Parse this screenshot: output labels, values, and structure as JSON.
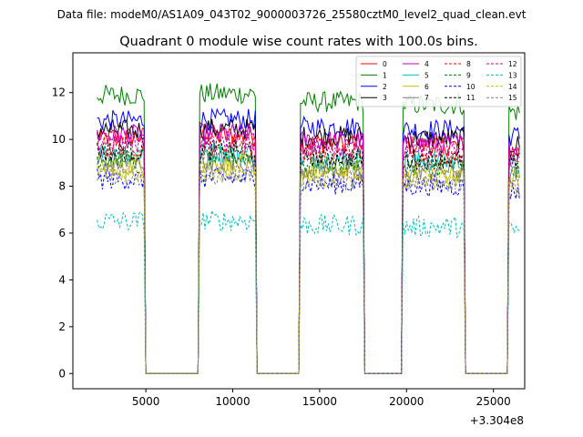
{
  "chart_data": {
    "type": "line",
    "suptitle": "Data file: modeM0/AS1A09_043T02_9000003726_25580cztM0_level2_quad_clean.evt",
    "title": "Quadrant 0 module wise count rates with 100.0s bins.",
    "xlabel": "",
    "ylabel": "",
    "x_offset_label": "+3.304e8",
    "xlim": [
      800,
      26800
    ],
    "ylim": [
      -0.65,
      13.7
    ],
    "xticks": [
      5000,
      10000,
      15000,
      20000,
      25000
    ],
    "xtick_labels": [
      "5000",
      "10000",
      "15000",
      "20000",
      "25000"
    ],
    "yticks": [
      0,
      2,
      4,
      6,
      8,
      10,
      12
    ],
    "ytick_labels": [
      "0",
      "2",
      "4",
      "6",
      "8",
      "10",
      "12"
    ],
    "legend_position": "top-right",
    "segments": [
      [
        2200,
        4950
      ],
      [
        8100,
        11350
      ],
      [
        13900,
        17500
      ],
      [
        19800,
        23300
      ],
      [
        25900,
        26550
      ]
    ],
    "series": [
      {
        "name": "0",
        "color": "#ff0000",
        "dash": "solid",
        "level": 10.1
      },
      {
        "name": "1",
        "color": "#008000",
        "dash": "solid",
        "level": 11.9
      },
      {
        "name": "2",
        "color": "#0000ff",
        "dash": "solid",
        "level": 10.8
      },
      {
        "name": "3",
        "color": "#000000",
        "dash": "solid",
        "level": 10.4
      },
      {
        "name": "4",
        "color": "#bf00bf",
        "dash": "solid",
        "level": 10.2
      },
      {
        "name": "5",
        "color": "#00bfbf",
        "dash": "solid",
        "level": 9.4
      },
      {
        "name": "6",
        "color": "#bfbf00",
        "dash": "solid",
        "level": 8.9
      },
      {
        "name": "7",
        "color": "#808080",
        "dash": "solid",
        "level": 9.0
      },
      {
        "name": "8",
        "color": "#ff0000",
        "dash": "dashed",
        "level": 9.7
      },
      {
        "name": "9",
        "color": "#008000",
        "dash": "dashed",
        "level": 9.2
      },
      {
        "name": "10",
        "color": "#0000ff",
        "dash": "dashed",
        "level": 8.3
      },
      {
        "name": "11",
        "color": "#000000",
        "dash": "dashed",
        "level": 9.5
      },
      {
        "name": "12",
        "color": "#bf00bf",
        "dash": "dashed",
        "level": 9.9
      },
      {
        "name": "13",
        "color": "#00bfbf",
        "dash": "dashed",
        "level": 6.5
      },
      {
        "name": "14",
        "color": "#bfbf00",
        "dash": "dashed",
        "level": 8.6
      },
      {
        "name": "15",
        "color": "#808080",
        "dash": "dashed",
        "level": 8.5
      }
    ]
  }
}
